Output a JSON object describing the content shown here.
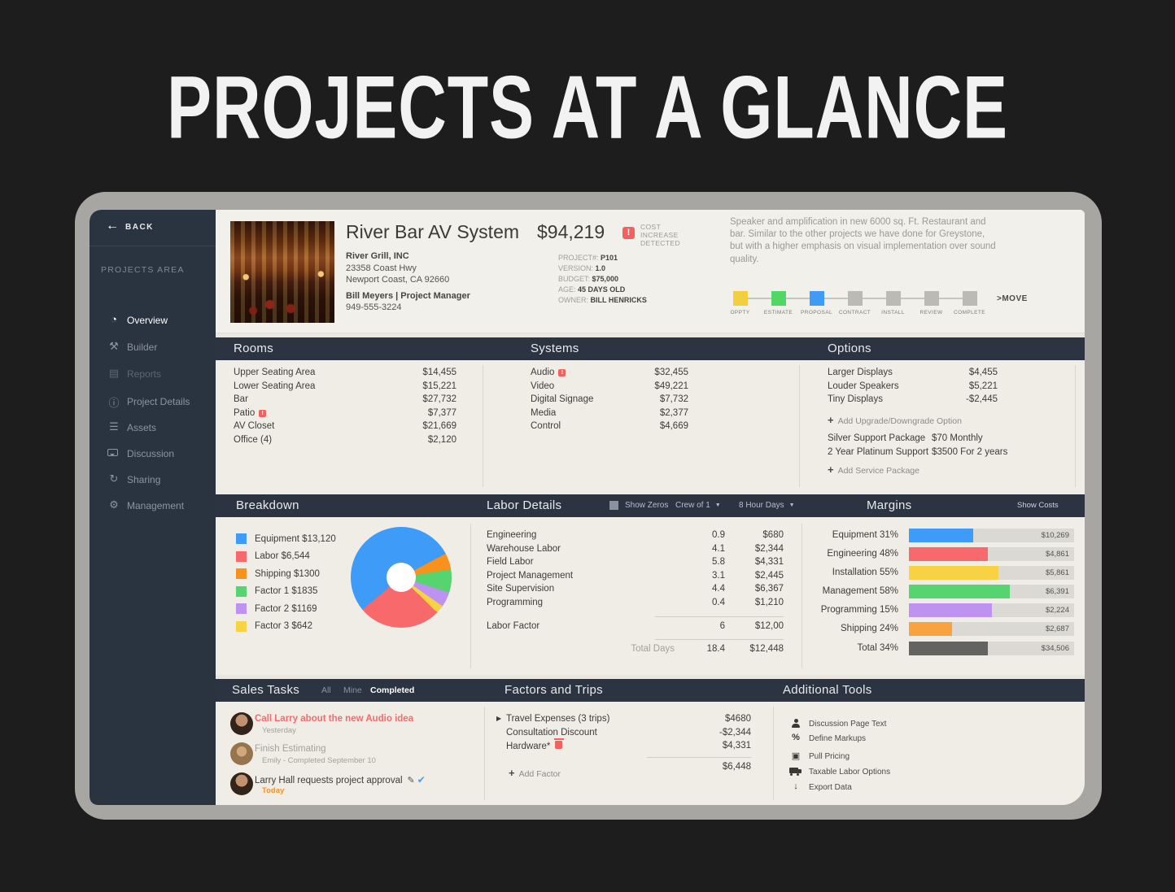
{
  "page": {
    "title": "PROJECTS AT A GLANCE"
  },
  "colors": {
    "background": "#1d1d1d",
    "bezel": "#a8a6a3",
    "panel_header": "#2b3440",
    "sidebar": "#2a3340",
    "cream": "#efede6",
    "alert_red": "#f4605e",
    "accent_blue": "#3f9bf8",
    "accent_green": "#55d46f",
    "accent_yellow": "#f7d344",
    "accent_orange": "#f8921d",
    "accent_purple": "#be92f0",
    "accent_salmon": "#f8696b"
  },
  "sidebar": {
    "back_label": "BACK",
    "section_label": "PROJECTS AREA",
    "items": [
      {
        "label": "Overview",
        "icon": "pie-chart-icon",
        "glyph": "◔",
        "state": "active"
      },
      {
        "label": "Builder",
        "icon": "hammer-icon",
        "glyph": "⚒",
        "state": "default"
      },
      {
        "label": "Reports",
        "icon": "document-icon",
        "glyph": "▤",
        "state": "disabled"
      },
      {
        "label": "Project Details",
        "icon": "info-icon",
        "glyph": "ⓘ",
        "state": "default"
      },
      {
        "label": "Assets",
        "icon": "layers-icon",
        "glyph": "☰",
        "state": "default"
      },
      {
        "label": "Discussion",
        "icon": "chat-icon",
        "glyph": "",
        "state": "default"
      },
      {
        "label": "Sharing",
        "icon": "share-refresh-icon",
        "glyph": "↻",
        "state": "default"
      },
      {
        "label": "Management",
        "icon": "gear-icon",
        "glyph": "⚙",
        "state": "default"
      }
    ]
  },
  "header": {
    "project_title": "River Bar AV System",
    "price": "$94,219",
    "alert": {
      "icon": "alert-icon",
      "line1": "COST INCREASE",
      "line2": "DETECTED"
    },
    "client": {
      "company": "River Grill, INC",
      "address1": "23358 Coast Hwy",
      "address2": "Newport Coast, CA 92660",
      "contact": "Bill Meyers | Project Manager",
      "phone": "949-555-3224"
    },
    "meta": [
      {
        "label": "PROJECT#:",
        "value": "P101"
      },
      {
        "label": "VERSION:",
        "value": "1.0"
      },
      {
        "label": "BUDGET:",
        "value": "$75,000"
      },
      {
        "label": "AGE:",
        "value": "45 DAYS OLD"
      },
      {
        "label": "OWNER:",
        "value": "BILL HENRICKS"
      }
    ],
    "description": "Speaker and amplification in new 6000 sq. Ft. Restaurant and bar. Similar to the other projects we have done for Greystone, but with a higher emphasis on visual implementation over sound quality.",
    "stepper": {
      "stages": [
        {
          "label": "OPPTY",
          "color": "#f2cf3e"
        },
        {
          "label": "ESTIMATE",
          "color": "#50d766"
        },
        {
          "label": "PROPOSAL",
          "color": "#3f9bf8"
        },
        {
          "label": "CONTRACT",
          "color": "#bcbab6"
        },
        {
          "label": "INSTALL",
          "color": "#bcbab6"
        },
        {
          "label": "REVIEW",
          "color": "#bcbab6"
        },
        {
          "label": "COMPLETE",
          "color": "#bcbab6"
        }
      ],
      "move_label": ">MOVE"
    }
  },
  "rooms": {
    "title": "Rooms",
    "items": [
      {
        "label": "Upper Seating Area",
        "value": "$14,455",
        "alert": false
      },
      {
        "label": "Lower Seating Area",
        "value": "$15,221",
        "alert": false
      },
      {
        "label": "Bar",
        "value": "$27,732",
        "alert": false
      },
      {
        "label": "Patio",
        "value": "$7,377",
        "alert": true
      },
      {
        "label": "AV Closet",
        "value": "$21,669",
        "alert": false
      },
      {
        "label": "Office (4)",
        "value": "$2,120",
        "alert": false
      }
    ]
  },
  "systems": {
    "title": "Systems",
    "items": [
      {
        "label": "Audio",
        "value": "$32,455",
        "alert": true
      },
      {
        "label": "Video",
        "value": "$49,221",
        "alert": false
      },
      {
        "label": "Digital Signage",
        "value": "$7,732",
        "alert": false
      },
      {
        "label": "Media",
        "value": "$2,377",
        "alert": false
      },
      {
        "label": "Control",
        "value": "$4,669",
        "alert": false
      }
    ]
  },
  "options": {
    "title": "Options",
    "upgrades": [
      {
        "label": "Larger Displays",
        "value": "$4,455"
      },
      {
        "label": "Louder Speakers",
        "value": "$5,221"
      },
      {
        "label": "Tiny Displays",
        "value": "-$2,445"
      }
    ],
    "add_upgrade_label": "Add Upgrade/Downgrade Option",
    "services": [
      {
        "label": "Silver Support Package",
        "value": "$70 Monthly"
      },
      {
        "label": "2 Year Platinum Support",
        "value": "$3500 For 2 years"
      }
    ],
    "add_service_label": "Add Service Package"
  },
  "breakdown": {
    "title": "Breakdown",
    "legend": [
      {
        "label": "Equipment $13,120",
        "color": "#3f9bf8"
      },
      {
        "label": "Labor $6,544",
        "color": "#f8696b"
      },
      {
        "label": "Shipping $1300",
        "color": "#f8921d"
      },
      {
        "label": "Factor 1 $1835",
        "color": "#55d46f"
      },
      {
        "label": "Factor 2 $1169",
        "color": "#be92f0"
      },
      {
        "label": "Factor 3 $642",
        "color": "#f7d344"
      }
    ]
  },
  "labor": {
    "title": "Labor Details",
    "show_zeros_label": "Show Zeros",
    "crew_label": "Crew of 1",
    "hours_label": "8 Hour Days",
    "rows": [
      {
        "label": "Engineering",
        "days": "0.9",
        "cost": "$680"
      },
      {
        "label": "Warehouse Labor",
        "days": "4.1",
        "cost": "$2,344"
      },
      {
        "label": "Field Labor",
        "days": "5.8",
        "cost": "$4,331"
      },
      {
        "label": "Project Management",
        "days": "3.1",
        "cost": "$2,445"
      },
      {
        "label": "Site Supervision",
        "days": "4.4",
        "cost": "$6,367"
      },
      {
        "label": "Programming",
        "days": "0.4",
        "cost": "$1,210"
      }
    ],
    "factor_row": {
      "label": "Labor Factor",
      "days": "6",
      "cost": "$12,00"
    },
    "total_row": {
      "label": "Total Days",
      "days": "18.4",
      "cost": "$12,448"
    }
  },
  "margins": {
    "title": "Margins",
    "show_costs_label": "Show Costs",
    "rows": [
      {
        "label": "Equipment",
        "pct": "31%",
        "cost": "$10,269",
        "color": "#3f9bf8",
        "bar_visual_pct": 39
      },
      {
        "label": "Engineering",
        "pct": "48%",
        "cost": "$4,861",
        "color": "#f8696b",
        "bar_visual_pct": 48
      },
      {
        "label": "Installation",
        "pct": "55%",
        "cost": "$5,861",
        "color": "#f7d344",
        "bar_visual_pct": 54
      },
      {
        "label": "Management",
        "pct": "58%",
        "cost": "$6,391",
        "color": "#55d46f",
        "bar_visual_pct": 61
      },
      {
        "label": "Programming",
        "pct": "15%",
        "cost": "$2,224",
        "color": "#be92f0",
        "bar_visual_pct": 50
      },
      {
        "label": "Shipping",
        "pct": "24%",
        "cost": "$2,687",
        "color": "#f8a33f",
        "bar_visual_pct": 26
      },
      {
        "label": "Total",
        "pct": "34%",
        "cost": "$34,506",
        "color": "#636361",
        "bar_visual_pct": 48
      }
    ]
  },
  "sales_tasks": {
    "title": "Sales Tasks",
    "tabs": [
      {
        "label": "All",
        "active": false
      },
      {
        "label": "Mine",
        "active": false
      },
      {
        "label": "Completed",
        "active": true
      }
    ],
    "items": [
      {
        "title": "Call Larry about the new Audio idea",
        "subtitle": "Yesterday",
        "style": "alert"
      },
      {
        "title": "Finish Estimating",
        "subtitle": "Emily - Completed September 10",
        "style": "done"
      },
      {
        "title": "Larry Hall requests project approval",
        "subtitle": "Today",
        "style": "pending",
        "icons": [
          "pencil-icon",
          "check-icon"
        ]
      }
    ]
  },
  "factors": {
    "title": "Factors and Trips",
    "rows": [
      {
        "label": "Travel Expenses (3 trips)",
        "value": "$4680",
        "expandable": true
      },
      {
        "label": "Consultation Discount",
        "value": "-$2,344",
        "expandable": false
      },
      {
        "label": "Hardware*",
        "value": "$4,331",
        "deletable": true
      }
    ],
    "add_label": "Add Factor",
    "total": "$6,448"
  },
  "tools": {
    "title": "Additional Tools",
    "items": [
      {
        "label": "Discussion Page Text",
        "icon": "person-gear-icon",
        "glyph": ""
      },
      {
        "label": "Define Markups",
        "icon": "percent-icon",
        "glyph": "%"
      },
      {
        "label": "Pull Pricing",
        "icon": "chip-icon",
        "glyph": "▣"
      },
      {
        "label": "Taxable Labor Options",
        "icon": "truck-icon",
        "glyph": ""
      },
      {
        "label": "Export Data",
        "icon": "download-icon",
        "glyph": "↓"
      }
    ]
  },
  "chart_data": [
    {
      "type": "pie",
      "title": "Breakdown",
      "labels": [
        "Equipment",
        "Labor",
        "Shipping",
        "Factor 1",
        "Factor 2",
        "Factor 3"
      ],
      "values": [
        13120,
        6544,
        1300,
        1835,
        1169,
        642
      ],
      "colors": [
        "#3f9bf8",
        "#f8696b",
        "#f8921d",
        "#55d46f",
        "#be92f0",
        "#f7d344"
      ],
      "donut": true,
      "rotation_deg": 230,
      "draw_order_indices": [
        0,
        2,
        3,
        4,
        5,
        1
      ],
      "legend_position": "left"
    },
    {
      "type": "bar",
      "title": "Margins",
      "orientation": "horizontal",
      "categories": [
        "Equipment",
        "Engineering",
        "Installation",
        "Management",
        "Programming",
        "Shipping",
        "Total"
      ],
      "series": [
        {
          "name": "margin_pct",
          "values": [
            31,
            48,
            55,
            58,
            15,
            24,
            34
          ]
        },
        {
          "name": "cost_usd",
          "values": [
            10269,
            4861,
            5861,
            6391,
            2224,
            2687,
            34506
          ]
        }
      ],
      "colors": [
        "#3f9bf8",
        "#f8696b",
        "#f7d344",
        "#55d46f",
        "#be92f0",
        "#f8a33f",
        "#636361"
      ]
    }
  ]
}
